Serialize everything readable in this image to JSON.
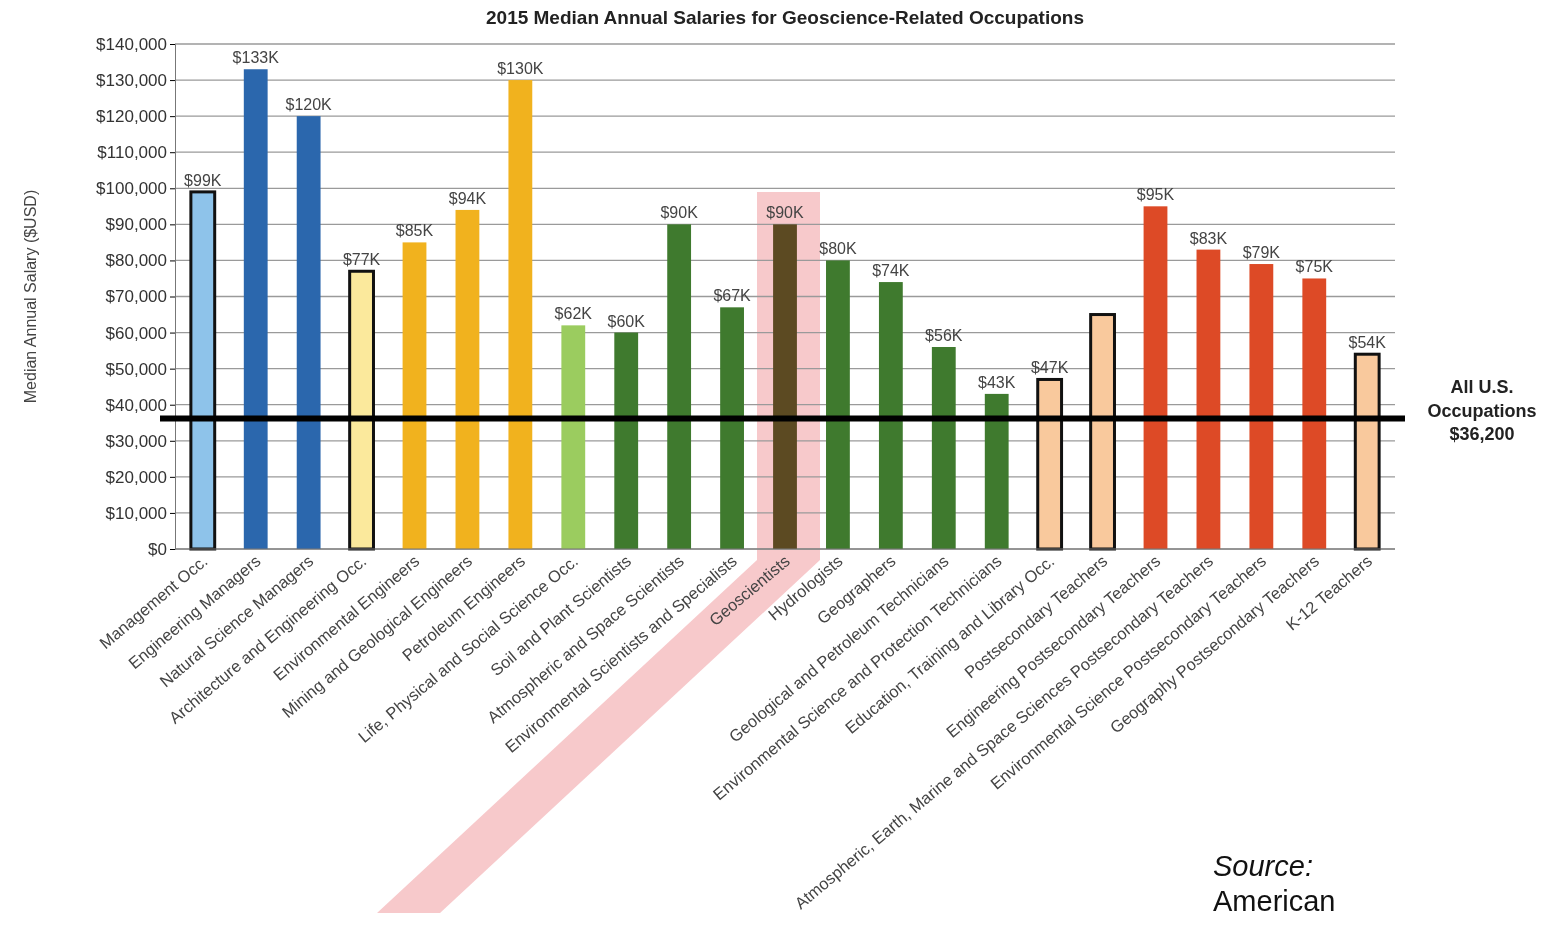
{
  "chart_data": {
    "type": "bar",
    "title": "2015 Median Annual Salaries for Geoscience-Related Occupations",
    "ylabel": "Median Annual Salary ($USD)",
    "categories": [
      "Management Occ.",
      "Engineering Managers",
      "Natural Science Managers",
      "Architecture and Engineering Occ.",
      "Environmental Engineers",
      "Mining and Geological Engineers",
      "Petroleum Engineers",
      "Life, Physical and Social Science Occ.",
      "Soil and Plant Scientists",
      "Atmospheric and Space Scientists",
      "Environmental Scientists and Specialists",
      "Geoscientists",
      "Hydrologists",
      "Geographers",
      "Geological and Petroleum Technicians",
      "Environmental Science and Protection Technicians",
      "Education, Training and Library Occ.",
      "Postsecondary Teachers",
      "Engineering Postsecondary Teachers",
      "Atmospheric, Earth, Marine and Space Sciences Postsecondary Teachers",
      "Environmental Science Postsecondary Teachers",
      "Geography Postsecondary Teachers",
      "K-12 Teachers"
    ],
    "values": [
      99000,
      133000,
      120000,
      77000,
      85000,
      94000,
      130000,
      62000,
      60000,
      90000,
      67000,
      90000,
      80000,
      74000,
      56000,
      43000,
      47000,
      65000,
      95000,
      83000,
      79000,
      75000,
      54000
    ],
    "value_labels": [
      "$99K",
      "$133K",
      "$120K",
      "$77K",
      "$85K",
      "$94K",
      "$130K",
      "$62K",
      "$60K",
      "$90K",
      "$67K",
      "$90K",
      "$80K",
      "$74K",
      "$56K",
      "$43K",
      "$47K",
      null,
      "$95K",
      "$83K",
      "$79K",
      "$75K",
      "$54K"
    ],
    "colors": [
      "#8ec3ea",
      "#2b67ad",
      "#2b67ad",
      "#fbe99c",
      "#f1b21e",
      "#f1b21e",
      "#f1b21e",
      "#9bcc5f",
      "#3f7a2e",
      "#3f7a2e",
      "#3f7a2e",
      "#5c4a22",
      "#3f7a2e",
      "#3f7a2e",
      "#3f7a2e",
      "#3f7a2e",
      "#f9c99d",
      "#f9c99d",
      "#dd4a26",
      "#dd4a26",
      "#dd4a26",
      "#dd4a26",
      "#f9c99d"
    ],
    "ylim": [
      0,
      140000
    ],
    "yticks": [
      {
        "value": 0,
        "label": "$0"
      },
      {
        "value": 10000,
        "label": "$10,000"
      },
      {
        "value": 20000,
        "label": "$20,000"
      },
      {
        "value": 30000,
        "label": "$30,000"
      },
      {
        "value": 40000,
        "label": "$40,000"
      },
      {
        "value": 50000,
        "label": "$50,000"
      },
      {
        "value": 60000,
        "label": "$60,000"
      },
      {
        "value": 70000,
        "label": "$70,000"
      },
      {
        "value": 80000,
        "label": "$80,000"
      },
      {
        "value": 90000,
        "label": "$90,000"
      },
      {
        "value": 100000,
        "label": "$100,000"
      },
      {
        "value": 110000,
        "label": "$110,000"
      },
      {
        "value": 120000,
        "label": "$120,000"
      },
      {
        "value": 130000,
        "label": "$130,000"
      },
      {
        "value": 140000,
        "label": "$140,000"
      }
    ],
    "grid": "y",
    "ref_lines": [
      {
        "axis": "y",
        "value": 36200,
        "label": "All U.S. Occupations $36,200",
        "color": "#000000"
      }
    ],
    "annotations": [
      "Source: American"
    ]
  }
}
